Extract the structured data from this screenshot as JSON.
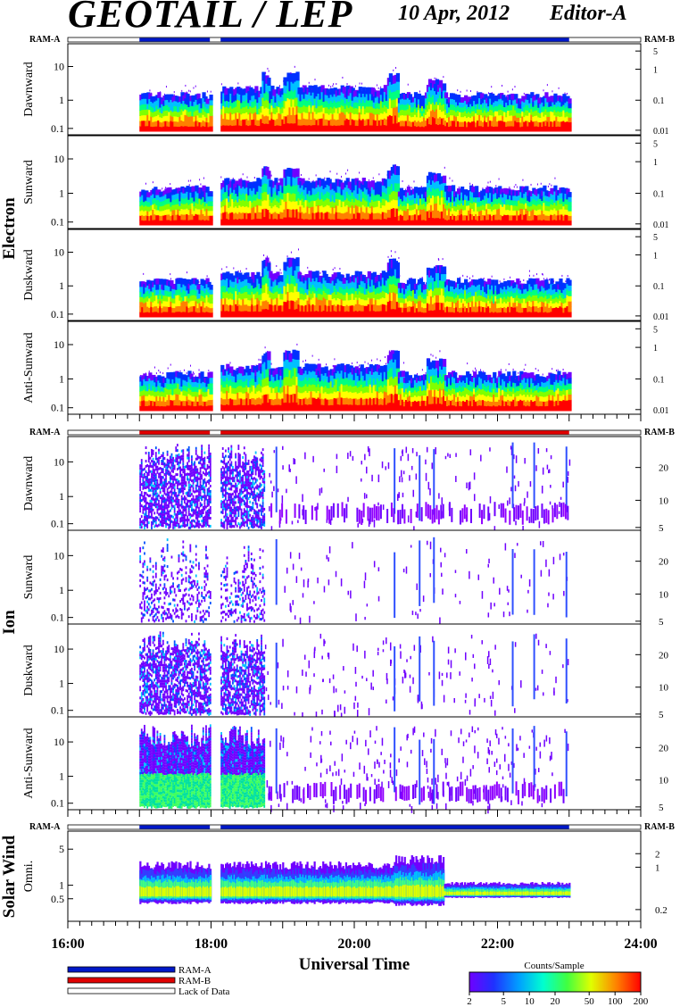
{
  "header": {
    "title": "GEOTAIL / LEP",
    "date": "10 Apr, 2012",
    "editor": "Editor-A"
  },
  "ram_labels": {
    "left": "RAM-A",
    "right": "RAM-B"
  },
  "groups": [
    {
      "name": "Electron",
      "panels": [
        "Dawnward",
        "Sunward",
        "Duskward",
        "Anti-Sunward"
      ]
    },
    {
      "name": "Ion",
      "panels": [
        "Dawnward",
        "Sunward",
        "Duskward",
        "Anti-Sunward"
      ]
    },
    {
      "name": "Solar Wind",
      "panels": [
        "Omni."
      ]
    }
  ],
  "x_axis": {
    "label": "Universal Time",
    "ticks": [
      "16:00",
      "18:00",
      "20:00",
      "22:00",
      "24:00"
    ]
  },
  "legend": {
    "items": [
      "RAM-A",
      "RAM-B",
      "Lack of Data"
    ],
    "colors": [
      "#0018c8",
      "#e00000",
      "#ffffff"
    ]
  },
  "colorbar": {
    "title": "Counts/Sample",
    "ticks": [
      "2",
      "5",
      "10",
      "20",
      "50",
      "100",
      "200"
    ]
  },
  "chart_data": {
    "type": "heatmap",
    "xlabel": "Universal Time",
    "xlim": [
      "16:00",
      "24:00"
    ],
    "data_intervals": [
      [
        "17:00",
        "17:59"
      ],
      [
        "18:08",
        "23:00"
      ]
    ],
    "electron_panels": {
      "left_ticks": [
        "0.1",
        "1",
        "10"
      ],
      "right_ticks": [
        "0.01",
        "0.1",
        "1",
        "5"
      ]
    },
    "ion_panels": {
      "left_ticks": [
        "0.1",
        "1",
        "10"
      ],
      "right_ticks": [
        "5",
        "10",
        "20"
      ]
    },
    "solar_wind_panel": {
      "left_ticks": [
        "0.5",
        "1",
        "5"
      ],
      "right_ticks": [
        "0.2",
        "1",
        "2"
      ]
    },
    "ram_state": {
      "electron": "RAM-A",
      "ion": "RAM-B",
      "solar_wind": "RAM-A"
    },
    "colorscale": [
      "#7000ff",
      "#0030ff",
      "#00c0ff",
      "#00ff80",
      "#80ff00",
      "#ffff00",
      "#ff8000",
      "#ff0000"
    ],
    "colorscale_range": [
      2,
      200
    ]
  }
}
